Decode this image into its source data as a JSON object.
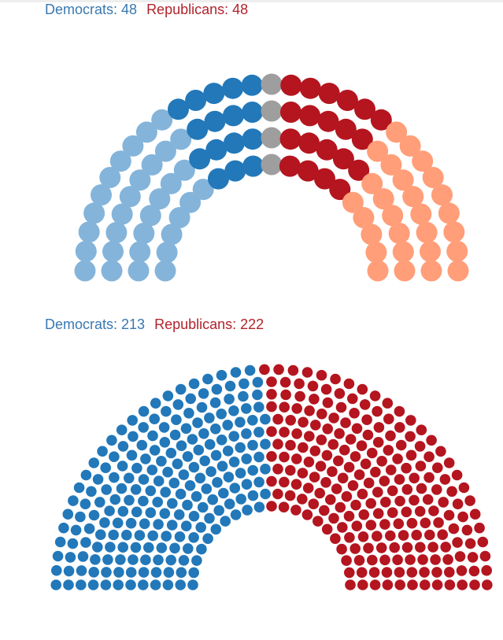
{
  "colors": {
    "dem_hold": "#2278b9",
    "dem_safe": "#84b4da",
    "rep_hold": "#b4151f",
    "rep_safe": "#ff9e78",
    "tossup": "#9e9e9e",
    "legend_dem": "#3a78b0",
    "legend_rep": "#b2232c"
  },
  "senate": {
    "legend": {
      "dem_label": "Democrats: 48",
      "rep_label": "Republicans: 48"
    }
  },
  "house": {
    "legend": {
      "dem_label": "Democrats: 213",
      "rep_label": "Republicans: 222"
    }
  },
  "chart_data": [
    {
      "type": "parliament",
      "title": "Democrats: 48  Republicans: 48",
      "total_seats": 100,
      "series": [
        {
          "name": "Democrats",
          "values": [
            32,
            16
          ]
        },
        {
          "name": "Republicans",
          "values": [
            20,
            28
          ]
        }
      ],
      "segments": [
        {
          "party": "Democrats",
          "seats": 32,
          "color": "#84b4da"
        },
        {
          "party": "Democrats",
          "seats": 16,
          "color": "#2278b9"
        },
        {
          "seats": 4,
          "color": "#9e9e9e"
        },
        {
          "party": "Republicans",
          "seats": 20,
          "color": "#b4151f"
        },
        {
          "party": "Republicans",
          "seats": 28,
          "color": "#ff9e78"
        }
      ]
    },
    {
      "type": "parliament",
      "title": "Democrats: 213  Republicans: 222",
      "total_seats": 435,
      "series": [
        {
          "name": "Democrats",
          "values": [
            213
          ]
        },
        {
          "name": "Republicans",
          "values": [
            222
          ]
        }
      ],
      "segments": [
        {
          "party": "Democrats",
          "seats": 213,
          "color": "#2278b9"
        },
        {
          "party": "Republicans",
          "seats": 222,
          "color": "#b4151f"
        }
      ]
    }
  ]
}
